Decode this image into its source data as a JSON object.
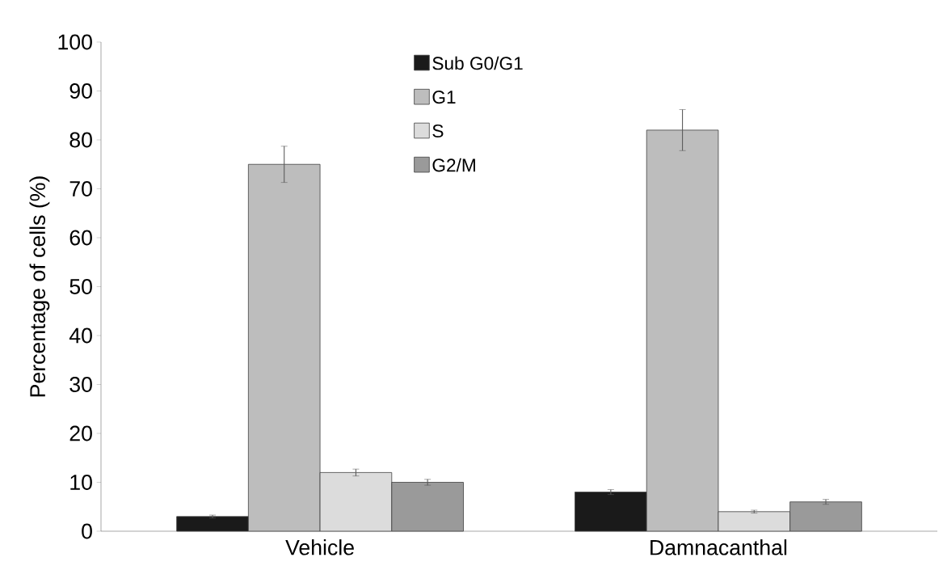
{
  "chart_data": {
    "type": "bar",
    "ylabel": "Percentage of cells (%)",
    "categories": [
      "Vehicle",
      "Damnacanthal"
    ],
    "series": [
      {
        "name": "Sub G0/G1",
        "color": "#1a1a1a",
        "values": [
          3,
          8
        ],
        "errors": [
          0.3,
          0.5
        ]
      },
      {
        "name": "G1",
        "color": "#bdbdbd",
        "values": [
          75,
          82
        ],
        "errors": [
          3.7,
          4.2
        ]
      },
      {
        "name": "S",
        "color": "#dcdcdc",
        "values": [
          12,
          4
        ],
        "errors": [
          0.7,
          0.3
        ]
      },
      {
        "name": "G2/M",
        "color": "#9a9a9a",
        "values": [
          10,
          6
        ],
        "errors": [
          0.6,
          0.5
        ]
      }
    ],
    "ylim": [
      0,
      100
    ],
    "yticks": [
      0,
      10,
      20,
      30,
      40,
      50,
      60,
      70,
      80,
      90,
      100
    ],
    "grid": false,
    "legend": "top"
  }
}
